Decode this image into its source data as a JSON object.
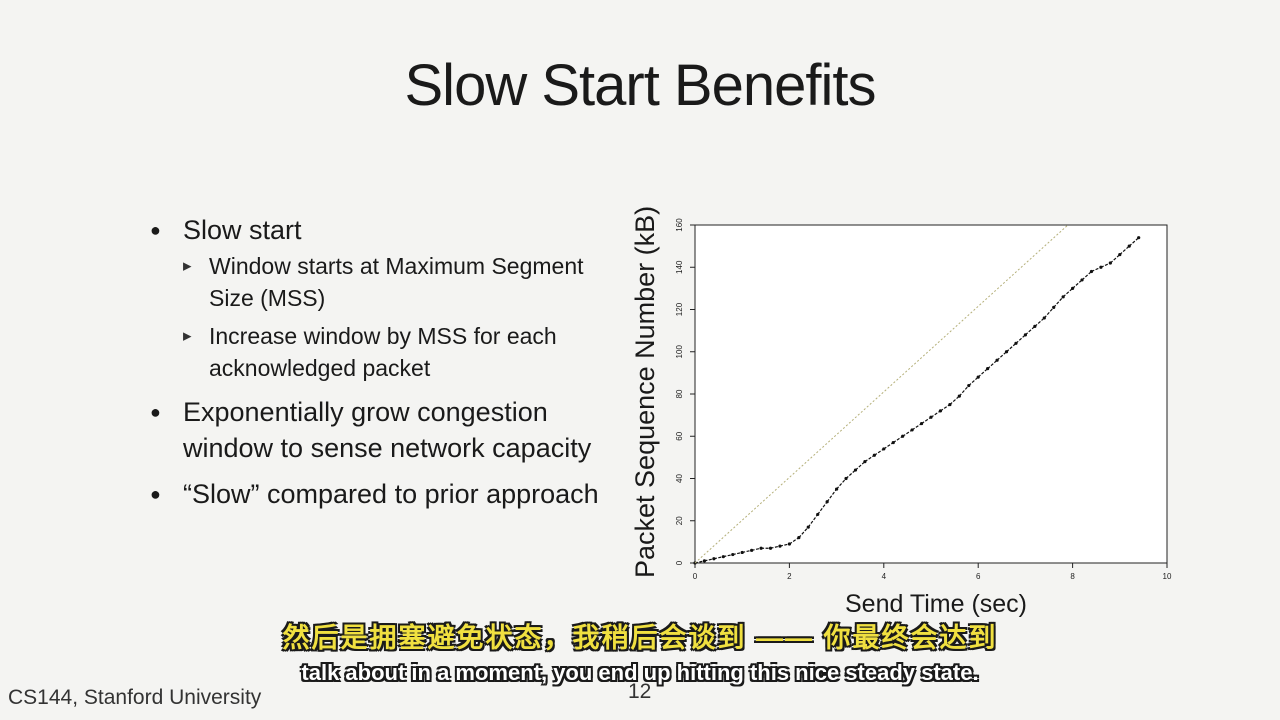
{
  "slide": {
    "title": "Slow Start Benefits",
    "footer": "CS144, Stanford University",
    "page_number": "12"
  },
  "bullets": {
    "b1": "Slow start",
    "b1_sub1": "Window starts at Maximum Segment Size (MSS)",
    "b1_sub2": "Increase window by MSS for each acknowledged packet",
    "b2": "Exponentially grow congestion window to sense network capacity",
    "b3": "“Slow” compared to prior approach"
  },
  "subtitles": {
    "chinese": "然后是拥塞避免状态，我稍后会谈到 —— 你最终会达到",
    "english": "talk about in a moment, you end up hitting this nice steady state."
  },
  "chart_data": {
    "type": "scatter",
    "xlabel": "Send Time (sec)",
    "ylabel": "Packet Sequence Number (kB)",
    "xlim": [
      0,
      10
    ],
    "ylim": [
      0,
      160
    ],
    "xticks": [
      "0",
      "2",
      "4",
      "6",
      "8",
      "10"
    ],
    "yticks": [
      "0",
      "20",
      "40",
      "60",
      "80",
      "100",
      "120",
      "140",
      "160"
    ],
    "grid": false,
    "series": [
      {
        "role": "data",
        "color": "#111111",
        "x": [
          0.0,
          0.2,
          0.4,
          0.6,
          0.8,
          1.0,
          1.2,
          1.4,
          1.6,
          1.8,
          2.0,
          2.2,
          2.4,
          2.6,
          2.8,
          3.0,
          3.2,
          3.4,
          3.6,
          3.8,
          4.0,
          4.2,
          4.4,
          4.6,
          4.8,
          5.0,
          5.2,
          5.4,
          5.6,
          5.8,
          6.0,
          6.2,
          6.4,
          6.6,
          6.8,
          7.0,
          7.2,
          7.4,
          7.6,
          7.8,
          8.0,
          8.2,
          8.4,
          8.6,
          8.8,
          9.0,
          9.2,
          9.4
        ],
        "y": [
          0,
          1,
          2,
          3,
          4,
          5,
          6,
          7,
          7,
          8,
          9,
          12,
          17,
          23,
          29,
          35,
          40,
          44,
          48,
          51,
          54,
          57,
          60,
          63,
          66,
          69,
          72,
          75,
          79,
          84,
          88,
          92,
          96,
          100,
          104,
          108,
          112,
          116,
          121,
          126,
          130,
          134,
          138,
          140,
          142,
          146,
          150,
          154
        ]
      },
      {
        "role": "reference",
        "color": "#b5b07a",
        "x": [
          0.0,
          7.9
        ],
        "y": [
          0,
          160
        ]
      }
    ]
  }
}
